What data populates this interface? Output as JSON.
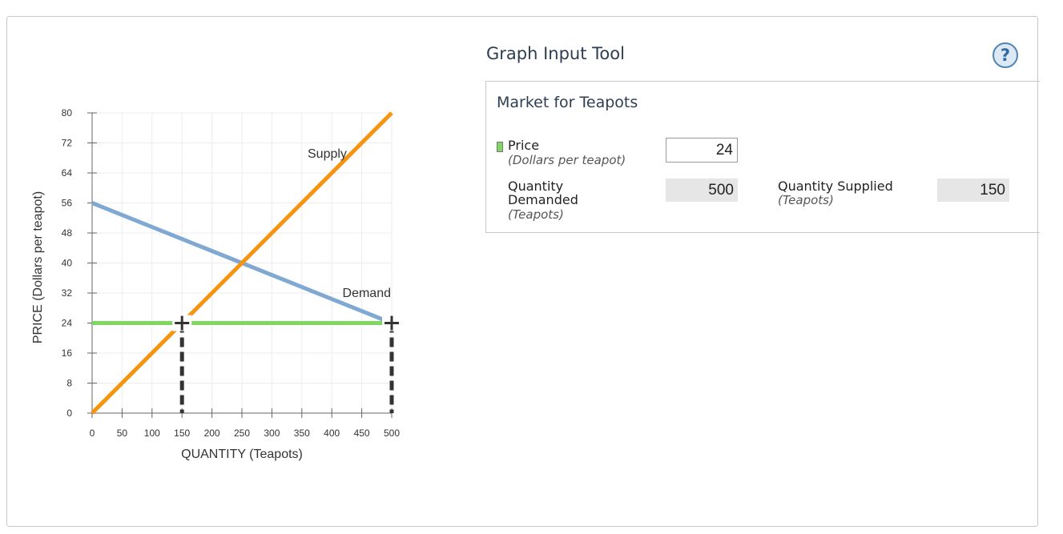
{
  "tool": {
    "title": "Graph Input Tool",
    "help_label": "?"
  },
  "panel": {
    "title": "Market for Teapots",
    "price_label": "Price",
    "price_unit": "(Dollars per teapot)",
    "price_value": "24",
    "qd_label_1": "Quantity",
    "qd_label_2": "Demanded",
    "qd_unit": "(Teapots)",
    "qd_value": "500",
    "qs_label": "Quantity Supplied",
    "qs_unit": "(Teapots)",
    "qs_value": "150"
  },
  "chart_data": {
    "type": "line",
    "xlabel": "QUANTITY (Teapots)",
    "ylabel": "PRICE (Dollars per teapot)",
    "xlim": [
      0,
      500
    ],
    "ylim": [
      0,
      80
    ],
    "x_ticks": [
      0,
      50,
      100,
      150,
      200,
      250,
      300,
      350,
      400,
      450,
      500
    ],
    "y_ticks": [
      0,
      8,
      16,
      24,
      32,
      40,
      48,
      56,
      64,
      72,
      80
    ],
    "grid": true,
    "series": [
      {
        "name": "Supply",
        "color": "#f7940f",
        "x": [
          0,
          500
        ],
        "y": [
          0,
          80
        ]
      },
      {
        "name": "Demand",
        "color": "#7fa9d3",
        "x": [
          0,
          500
        ],
        "y": [
          56,
          24
        ]
      }
    ],
    "price_line": {
      "color": "#7ed860",
      "y": 24,
      "x": [
        0,
        500
      ]
    },
    "markers": [
      {
        "x": 150,
        "y": 24
      },
      {
        "x": 500,
        "y": 24
      }
    ]
  }
}
